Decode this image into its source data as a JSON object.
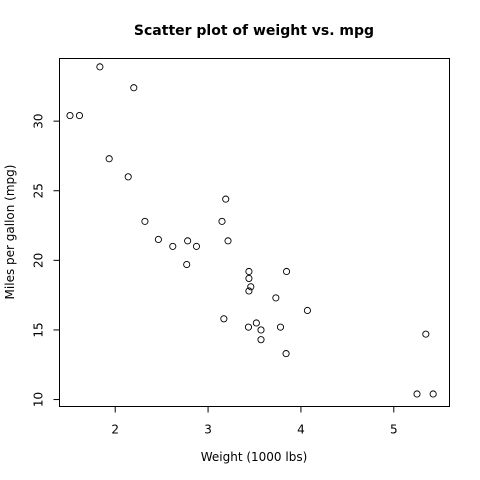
{
  "chart_data": {
    "type": "scatter",
    "title": "Scatter plot of weight vs. mpg",
    "xlabel": "Weight (1000 lbs)",
    "ylabel": "Miles per gallon (mpg)",
    "xlim": [
      1.4,
      5.6
    ],
    "ylim": [
      9.5,
      34.5
    ],
    "xticks": [
      2,
      3,
      4,
      5
    ],
    "yticks": [
      10,
      15,
      20,
      25,
      30
    ],
    "grid": false,
    "x": [
      2.62,
      2.875,
      2.32,
      3.215,
      3.44,
      3.46,
      3.57,
      3.19,
      3.15,
      3.44,
      3.44,
      4.07,
      3.73,
      3.78,
      5.25,
      5.424,
      5.345,
      2.2,
      1.615,
      1.835,
      2.465,
      3.52,
      3.435,
      3.84,
      3.845,
      1.935,
      2.14,
      1.513,
      3.17,
      2.77,
      3.57,
      2.78
    ],
    "y": [
      21.0,
      21.0,
      22.8,
      21.4,
      18.7,
      18.1,
      14.3,
      24.4,
      22.8,
      19.2,
      17.8,
      16.4,
      17.3,
      15.2,
      10.4,
      10.4,
      14.7,
      32.4,
      30.4,
      33.9,
      21.5,
      15.5,
      15.2,
      13.3,
      19.2,
      27.3,
      26.0,
      30.4,
      15.8,
      19.7,
      15.0,
      21.4
    ]
  },
  "colors": {
    "background": "#ffffff",
    "foreground": "#000000"
  }
}
